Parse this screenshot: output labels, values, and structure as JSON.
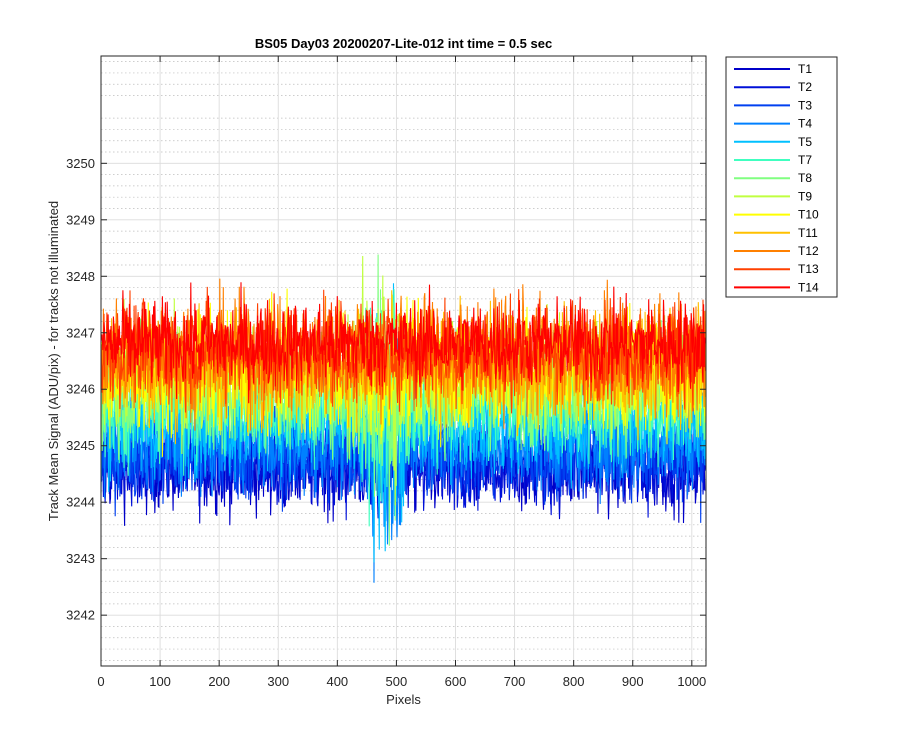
{
  "chart_data": {
    "type": "line",
    "title": "BS05 Day03 20200207-Lite-012 int time = 0.5 sec",
    "xlabel": "Pixels",
    "ylabel": "Track Mean Signal (ADU/pix) - for tracks not illuminated",
    "xlim": [
      0,
      1024
    ],
    "ylim": [
      3241.1,
      3251.9
    ],
    "xticks": [
      0,
      100,
      200,
      300,
      400,
      500,
      600,
      700,
      800,
      900,
      1000
    ],
    "yticks": [
      3242,
      3243,
      3244,
      3245,
      3246,
      3247,
      3248,
      3249,
      3250
    ],
    "grid": true,
    "minor_grid": true,
    "legend_position": "outside-top-right",
    "x_points": 1024,
    "series": [
      {
        "name": "T1",
        "color": "#0000c8",
        "mean": 3244.6,
        "amplitude": 0.7
      },
      {
        "name": "T2",
        "color": "#0010d8",
        "mean": 3244.7,
        "amplitude": 0.7
      },
      {
        "name": "T3",
        "color": "#0040f0",
        "mean": 3244.8,
        "amplitude": 0.7
      },
      {
        "name": "T4",
        "color": "#0080ff",
        "mean": 3245.1,
        "amplitude": 0.8
      },
      {
        "name": "T5",
        "color": "#00c0ff",
        "mean": 3245.4,
        "amplitude": 0.8
      },
      {
        "name": "T7",
        "color": "#40ffc0",
        "mean": 3245.8,
        "amplitude": 0.9
      },
      {
        "name": "T8",
        "color": "#80ff80",
        "mean": 3246.0,
        "amplitude": 0.9
      },
      {
        "name": "T9",
        "color": "#c0ff40",
        "mean": 3246.2,
        "amplitude": 0.9
      },
      {
        "name": "T10",
        "color": "#ffff00",
        "mean": 3246.3,
        "amplitude": 0.9
      },
      {
        "name": "T11",
        "color": "#ffc000",
        "mean": 3246.4,
        "amplitude": 0.9
      },
      {
        "name": "T12",
        "color": "#ff8000",
        "mean": 3246.6,
        "amplitude": 0.9
      },
      {
        "name": "T13",
        "color": "#ff4000",
        "mean": 3246.7,
        "amplitude": 0.8
      },
      {
        "name": "T14",
        "color": "#ff0000",
        "mean": 3246.8,
        "amplitude": 0.7
      }
    ]
  }
}
